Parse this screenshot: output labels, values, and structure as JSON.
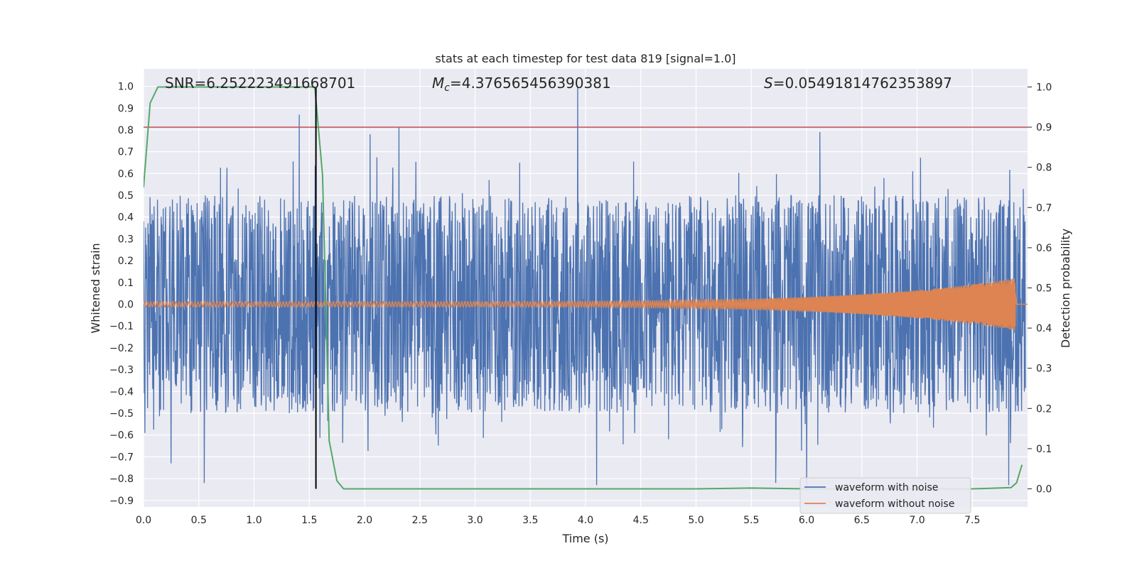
{
  "chart_data": {
    "type": "line",
    "title": "stats at each timestep for test data 819 [signal=1.0]",
    "xlabel": "Time (s)",
    "ylabel": "Whitened strain",
    "y2label": "Detection probability",
    "xlim": [
      0.0,
      8.0
    ],
    "ylim": [
      -0.93,
      1.08
    ],
    "y2lim": [
      -0.045,
      1.045
    ],
    "x_ticks": [
      0.0,
      0.5,
      1.0,
      1.5,
      2.0,
      2.5,
      3.0,
      3.5,
      4.0,
      4.5,
      5.0,
      5.5,
      6.0,
      6.5,
      7.0,
      7.5
    ],
    "x_tick_labels": [
      "0.0",
      "0.5",
      "1.0",
      "1.5",
      "2.0",
      "2.5",
      "3.0",
      "3.5",
      "4.0",
      "4.5",
      "5.0",
      "5.5",
      "6.0",
      "6.5",
      "7.0",
      "7.5"
    ],
    "y_ticks": [
      -0.9,
      -0.8,
      -0.7,
      -0.6,
      -0.5,
      -0.4,
      -0.3,
      -0.2,
      -0.1,
      0.0,
      0.1,
      0.2,
      0.3,
      0.4,
      0.5,
      0.6,
      0.7,
      0.8,
      0.9,
      1.0
    ],
    "y_tick_labels": [
      "−0.9",
      "−0.8",
      "−0.7",
      "−0.6",
      "−0.5",
      "−0.4",
      "−0.3",
      "−0.2",
      "−0.1",
      "0.0",
      "0.1",
      "0.2",
      "0.3",
      "0.4",
      "0.5",
      "0.6",
      "0.7",
      "0.8",
      "0.9",
      "1.0"
    ],
    "y2_ticks": [
      0.0,
      0.1,
      0.2,
      0.3,
      0.4,
      0.5,
      0.6,
      0.7,
      0.8,
      0.9,
      1.0
    ],
    "y2_tick_labels": [
      "0.0",
      "0.1",
      "0.2",
      "0.3",
      "0.4",
      "0.5",
      "0.6",
      "0.7",
      "0.8",
      "0.9",
      "1.0"
    ],
    "grid": true,
    "legend_position": "bottom-right",
    "annotations": {
      "snr": "SNR=6.252223491668701",
      "mc_symbol": "M",
      "mc_sub": "c",
      "mc_value": "=4.376565456390381",
      "s_symbol": "S",
      "s_value": "=0.05491814762353897"
    },
    "series": [
      {
        "name": "waveform with noise",
        "color": "#4c72b0",
        "axis": "left",
        "description_peaks": [
          {
            "x": 1.41,
            "y": 0.87
          },
          {
            "x": 2.05,
            "y": 0.78
          },
          {
            "x": 2.31,
            "y": 0.81
          },
          {
            "x": 3.93,
            "y": 1.0
          },
          {
            "x": 6.12,
            "y": 0.79
          },
          {
            "x": 0.25,
            "y": -0.73
          },
          {
            "x": 0.55,
            "y": -0.82
          },
          {
            "x": 4.1,
            "y": -0.83
          },
          {
            "x": 5.72,
            "y": -0.82
          },
          {
            "x": 6.0,
            "y": -0.86
          },
          {
            "x": 7.83,
            "y": -0.83
          }
        ],
        "noise_envelope": 0.5,
        "end_time": 7.98
      },
      {
        "name": "waveform without noise",
        "color": "#dd8452",
        "axis": "left",
        "amplitude_start": 0.012,
        "amplitude_end": 0.12,
        "merger_time": 7.89
      },
      {
        "name": "detection probability",
        "color": "#55a868",
        "axis": "right",
        "x": [
          0.0,
          0.06,
          0.13,
          0.3,
          1.0,
          1.45,
          1.55,
          1.62,
          1.68,
          1.75,
          1.81,
          2.0,
          3.0,
          4.0,
          5.0,
          5.5,
          6.0,
          7.0,
          7.5,
          7.85,
          7.9,
          7.95
        ],
        "y": [
          0.75,
          0.96,
          1.0,
          1.0,
          1.0,
          1.0,
          1.0,
          0.78,
          0.12,
          0.02,
          0.0,
          0.0,
          0.0,
          0.0,
          0.0,
          0.002,
          0.0,
          0.0,
          0.0,
          0.003,
          0.015,
          0.06
        ]
      }
    ],
    "threshold": {
      "value": 0.9,
      "axis": "right",
      "color": "#c44e52"
    },
    "event_marker": {
      "x": 1.56,
      "color": "#000000"
    }
  }
}
